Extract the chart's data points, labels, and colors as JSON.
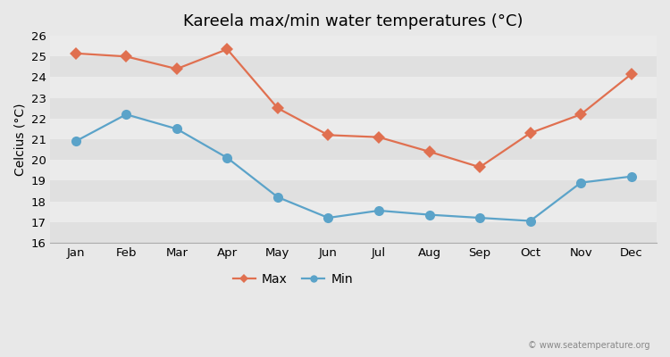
{
  "title": "Kareela max/min water temperatures (°C)",
  "ylabel": "Celcius (°C)",
  "months": [
    "Jan",
    "Feb",
    "Mar",
    "Apr",
    "May",
    "Jun",
    "Jul",
    "Aug",
    "Sep",
    "Oct",
    "Nov",
    "Dec"
  ],
  "max_temps": [
    25.15,
    25.0,
    24.4,
    25.35,
    22.5,
    21.2,
    21.1,
    20.4,
    19.65,
    21.3,
    22.2,
    24.15
  ],
  "min_temps": [
    20.9,
    22.2,
    21.5,
    20.1,
    18.2,
    17.2,
    17.55,
    17.35,
    17.2,
    17.05,
    18.9,
    19.2
  ],
  "max_color": "#e07050",
  "min_color": "#5ba3c9",
  "bg_color": "#e8e8e8",
  "band_light": "#ebebeb",
  "band_dark": "#e0e0e0",
  "ylim": [
    16,
    26
  ],
  "yticks": [
    16,
    17,
    18,
    19,
    20,
    21,
    22,
    23,
    24,
    25,
    26
  ],
  "legend_labels": [
    "Max",
    "Min"
  ],
  "watermark": "© www.seatemperature.org",
  "title_fontsize": 13,
  "label_fontsize": 10,
  "tick_fontsize": 9.5,
  "max_marker": "D",
  "min_marker": "o",
  "max_markersize": 7,
  "min_markersize": 8,
  "linewidth": 1.6
}
